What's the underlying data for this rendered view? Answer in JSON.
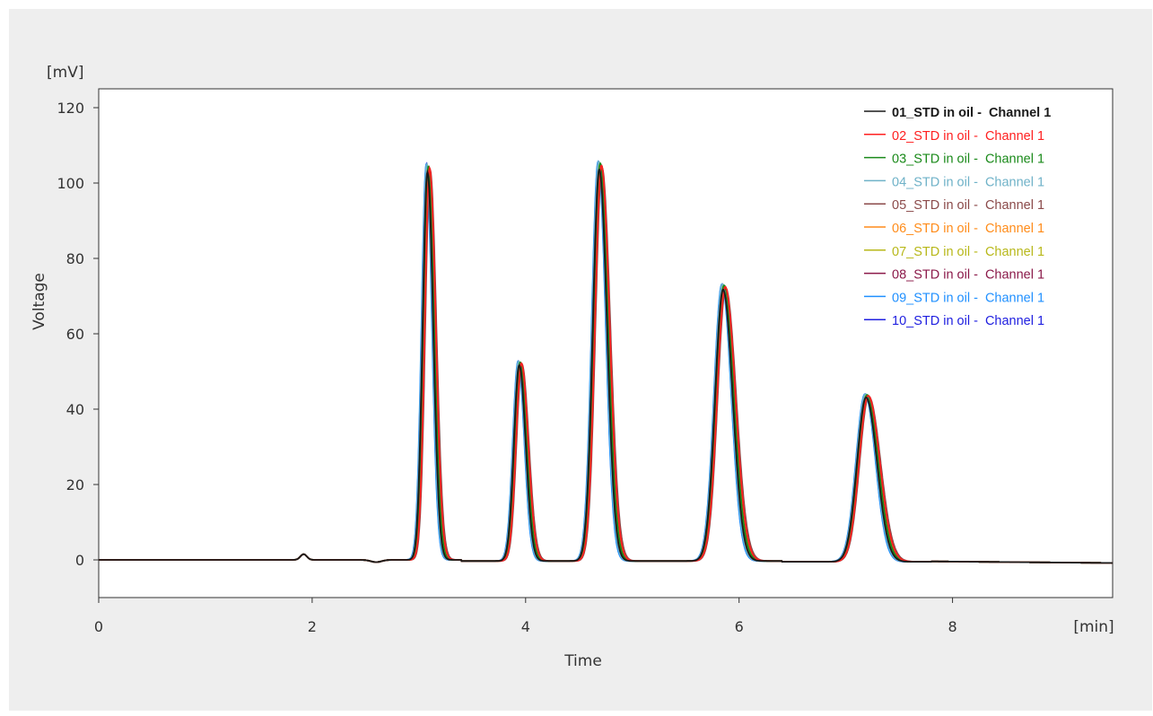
{
  "chart_data": {
    "type": "line",
    "title": "",
    "xlabel": "Time",
    "ylabel": "Voltage",
    "x_unit": "[min]",
    "y_unit": "[mV]",
    "xlim": [
      0,
      9.5
    ],
    "ylim": [
      -10,
      125
    ],
    "x_ticks": [
      0,
      2,
      4,
      6,
      8
    ],
    "y_ticks": [
      0,
      20,
      40,
      60,
      80,
      100,
      120
    ],
    "grid": false,
    "legend_position": "top-right",
    "peaks": [
      {
        "retention_time": 3.08,
        "height": 105
      },
      {
        "retention_time": 3.94,
        "height": 53
      },
      {
        "retention_time": 4.69,
        "height": 106
      },
      {
        "retention_time": 5.85,
        "height": 73.5
      },
      {
        "retention_time": 7.19,
        "height": 44.5
      }
    ],
    "series": [
      {
        "name": "01_STD in oil -  Channel 1",
        "color": "#1a1a1a",
        "bold": true
      },
      {
        "name": "02_STD in oil -  Channel 1",
        "color": "#ff2020"
      },
      {
        "name": "03_STD in oil -  Channel 1",
        "color": "#1a8a1a"
      },
      {
        "name": "04_STD in oil -  Channel 1",
        "color": "#6fb2c8"
      },
      {
        "name": "05_STD in oil -  Channel 1",
        "color": "#8b4a4a"
      },
      {
        "name": "06_STD in oil -  Channel 1",
        "color": "#ff8c1a"
      },
      {
        "name": "07_STD in oil -  Channel 1",
        "color": "#b8b81a"
      },
      {
        "name": "08_STD in oil -  Channel 1",
        "color": "#8b1a4a"
      },
      {
        "name": "09_STD in oil -  Channel 1",
        "color": "#2090ff"
      },
      {
        "name": "10_STD in oil -  Channel 1",
        "color": "#2020e0"
      }
    ]
  }
}
